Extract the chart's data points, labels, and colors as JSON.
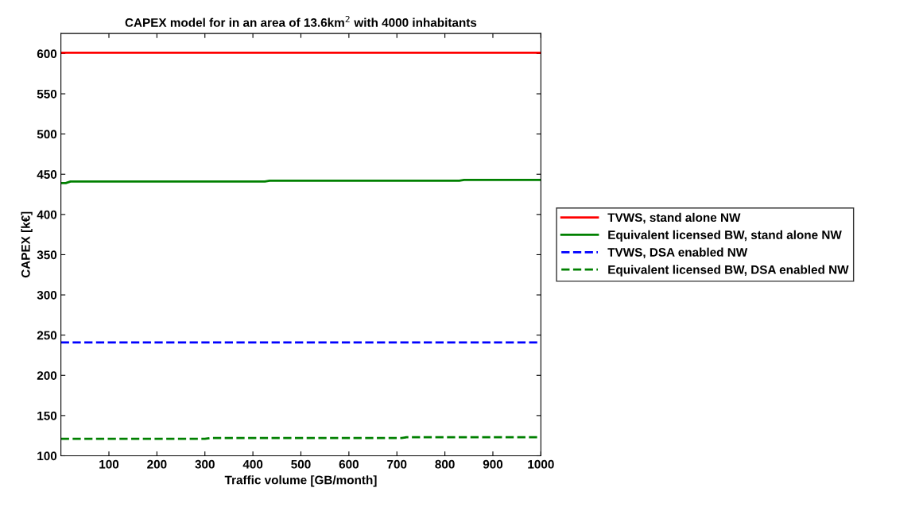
{
  "chart_data": {
    "type": "line",
    "title": "CAPEX model for in an area of 13.6km$^{2}$ with 4000 inhabitants",
    "xlabel": "Traffic volume [GB/month]",
    "ylabel": "CAPEX [k€]",
    "xlim": [
      0,
      1000
    ],
    "ylim": [
      100,
      625
    ],
    "xticks": [
      100,
      200,
      300,
      400,
      500,
      600,
      700,
      800,
      900,
      1000
    ],
    "yticks": [
      100,
      150,
      200,
      250,
      300,
      350,
      400,
      450,
      500,
      550,
      600
    ],
    "legend": "right",
    "grid": false,
    "marker": "none",
    "series": [
      {
        "name": "TVWS, stand alone NW",
        "color": "#ff0000",
        "line_style": "solid",
        "x": [
          0,
          1000
        ],
        "values": [
          601,
          601
        ]
      },
      {
        "name": "Equivalent licensed BW, stand alone NW",
        "color": "#008000",
        "line_style": "solid",
        "x": [
          0,
          10,
          20,
          425,
          435,
          830,
          840,
          1000
        ],
        "values": [
          439,
          439,
          441,
          441,
          442,
          442,
          443,
          443
        ]
      },
      {
        "name": "TVWS, DSA enabled NW",
        "color": "#0000ff",
        "line_style": "dashed",
        "x": [
          0,
          1000
        ],
        "values": [
          241,
          241
        ]
      },
      {
        "name": "Equivalent licensed BW, DSA enabled NW",
        "color": "#008000",
        "line_style": "dashed",
        "x": [
          0,
          300,
          310,
          710,
          720,
          1000
        ],
        "values": [
          121,
          121,
          122,
          122,
          123,
          123
        ]
      }
    ]
  }
}
